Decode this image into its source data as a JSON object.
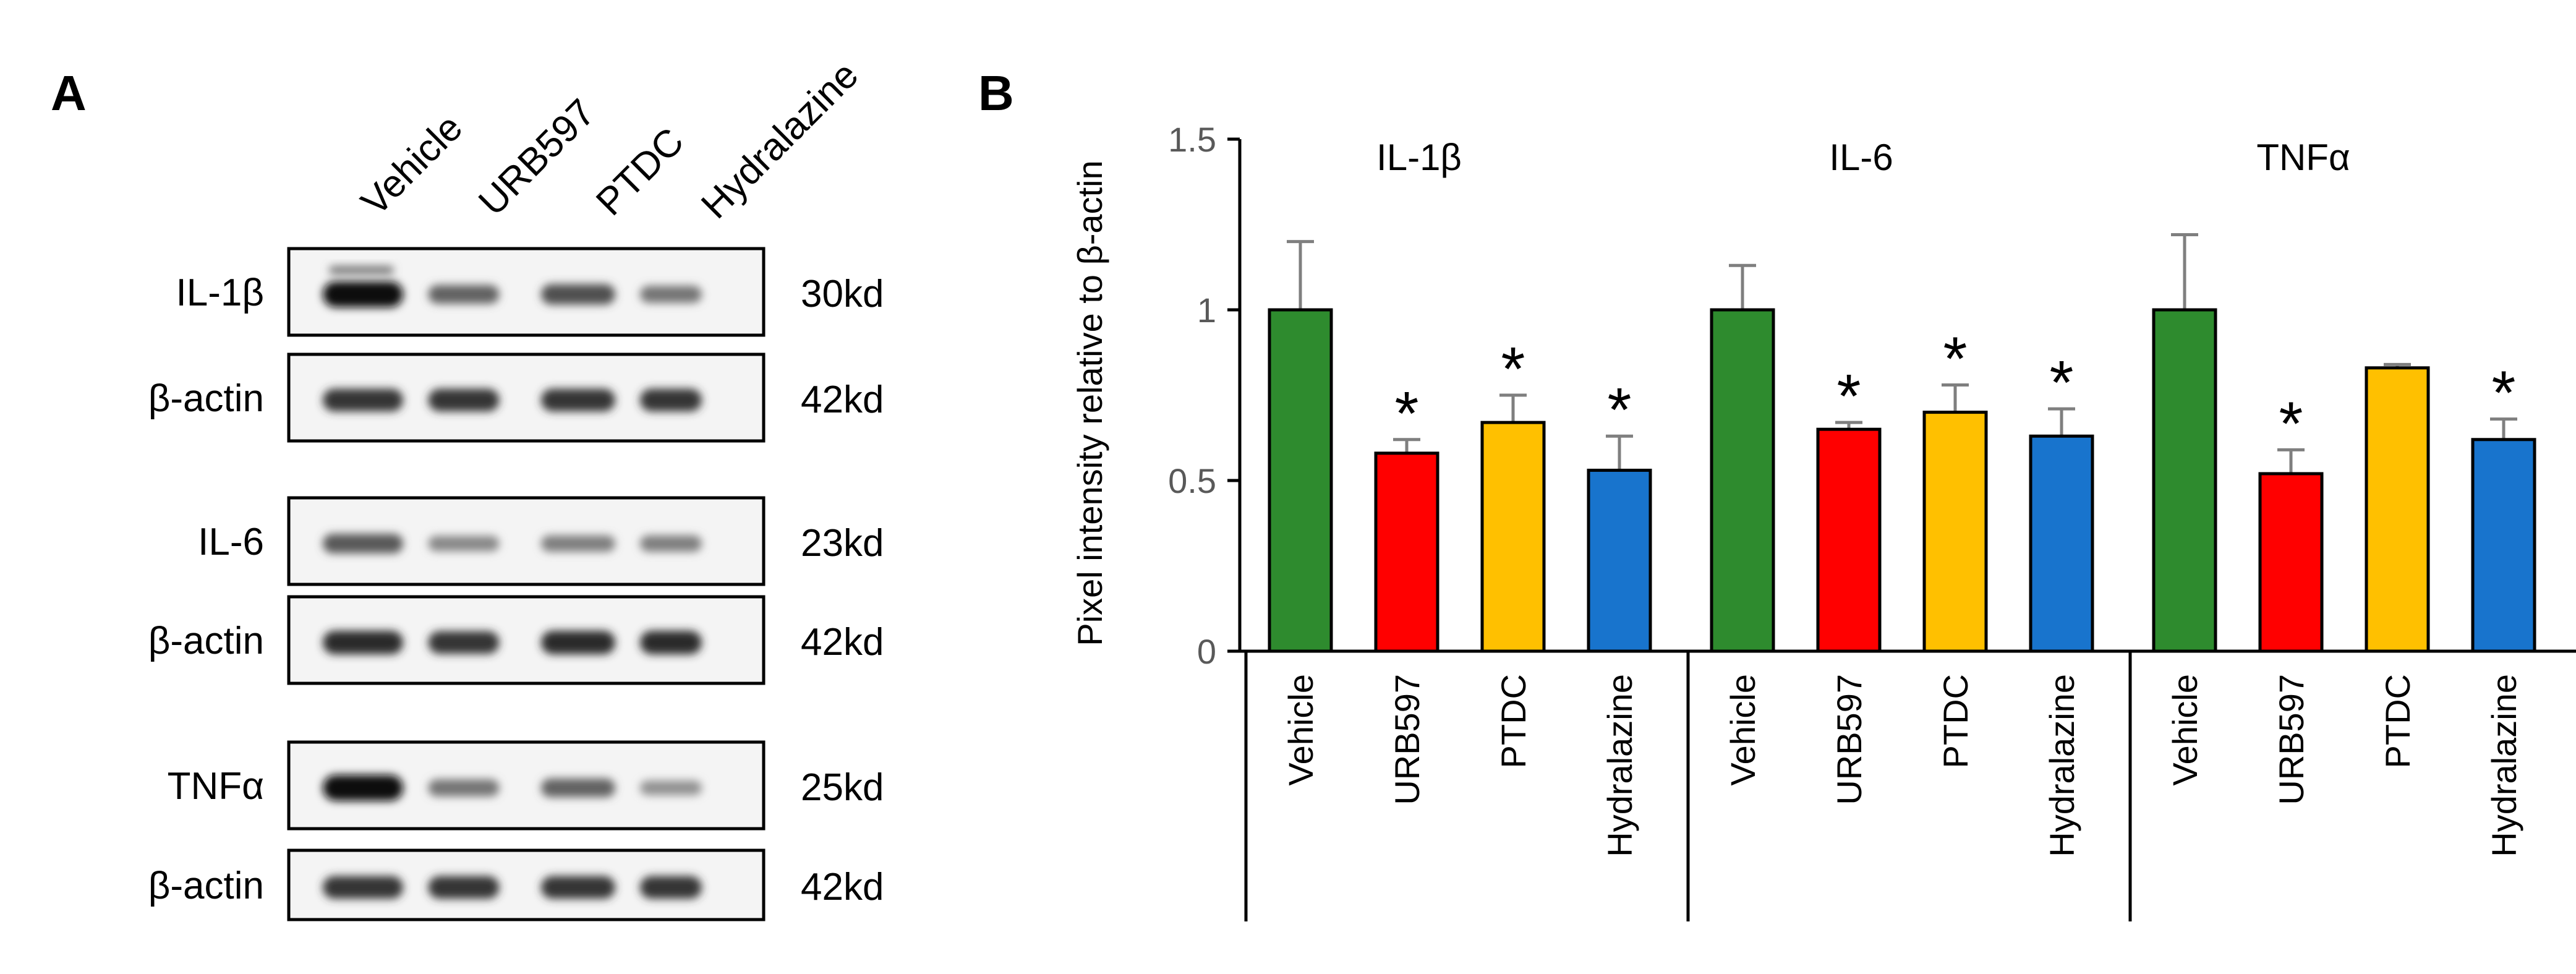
{
  "panel_a": {
    "label": "A",
    "lanes": [
      "Vehicle",
      "URB597",
      "PTDC",
      "Hydralazine"
    ],
    "blots": [
      {
        "protein": "IL-1β",
        "size": "30kd",
        "band_intensity": [
          1.0,
          0.55,
          0.65,
          0.45
        ],
        "faint_upper_band": true
      },
      {
        "protein": "β-actin",
        "size": "42kd",
        "band_intensity": [
          0.8,
          0.8,
          0.8,
          0.8
        ],
        "faint_upper_band": false
      },
      {
        "protein": "IL-6",
        "size": "23kd",
        "band_intensity": [
          0.6,
          0.35,
          0.4,
          0.4
        ],
        "faint_upper_band": false
      },
      {
        "protein": "β-actin",
        "size": "42kd",
        "band_intensity": [
          0.85,
          0.8,
          0.85,
          0.85
        ],
        "faint_upper_band": false
      },
      {
        "protein": "TNFα",
        "size": "25kd",
        "band_intensity": [
          1.0,
          0.45,
          0.55,
          0.3
        ],
        "faint_upper_band": false
      },
      {
        "protein": "β-actin",
        "size": "42kd",
        "band_intensity": [
          0.8,
          0.8,
          0.8,
          0.8
        ],
        "faint_upper_band": false
      }
    ]
  },
  "chart_data": {
    "type": "bar",
    "panel_label": "B",
    "ylabel": "Pixel intensity relative to β-actin",
    "xlabel": "",
    "ylim": [
      0,
      1.5
    ],
    "yticks": [
      0,
      0.5,
      1,
      1.5
    ],
    "ytick_labels": [
      "0",
      "0.5",
      "1",
      "1.5"
    ],
    "grid": false,
    "categories": [
      "Vehicle",
      "URB597",
      "PTDC",
      "Hydralazine"
    ],
    "colors": [
      "#2e8b2e",
      "#ff0000",
      "#ffc000",
      "#1874cd"
    ],
    "significance_marker": "*",
    "groups": [
      {
        "name": "IL-1β",
        "values": [
          1.0,
          0.58,
          0.67,
          0.53
        ],
        "errors": [
          0.2,
          0.04,
          0.08,
          0.1
        ],
        "significant": [
          false,
          true,
          true,
          true
        ]
      },
      {
        "name": "IL-6",
        "values": [
          1.0,
          0.65,
          0.7,
          0.63
        ],
        "errors": [
          0.13,
          0.02,
          0.08,
          0.08
        ],
        "significant": [
          false,
          true,
          true,
          true
        ]
      },
      {
        "name": "TNFα",
        "values": [
          1.0,
          0.52,
          0.83,
          0.62
        ],
        "errors": [
          0.22,
          0.07,
          0.01,
          0.06
        ],
        "significant": [
          false,
          true,
          false,
          true
        ]
      }
    ]
  }
}
